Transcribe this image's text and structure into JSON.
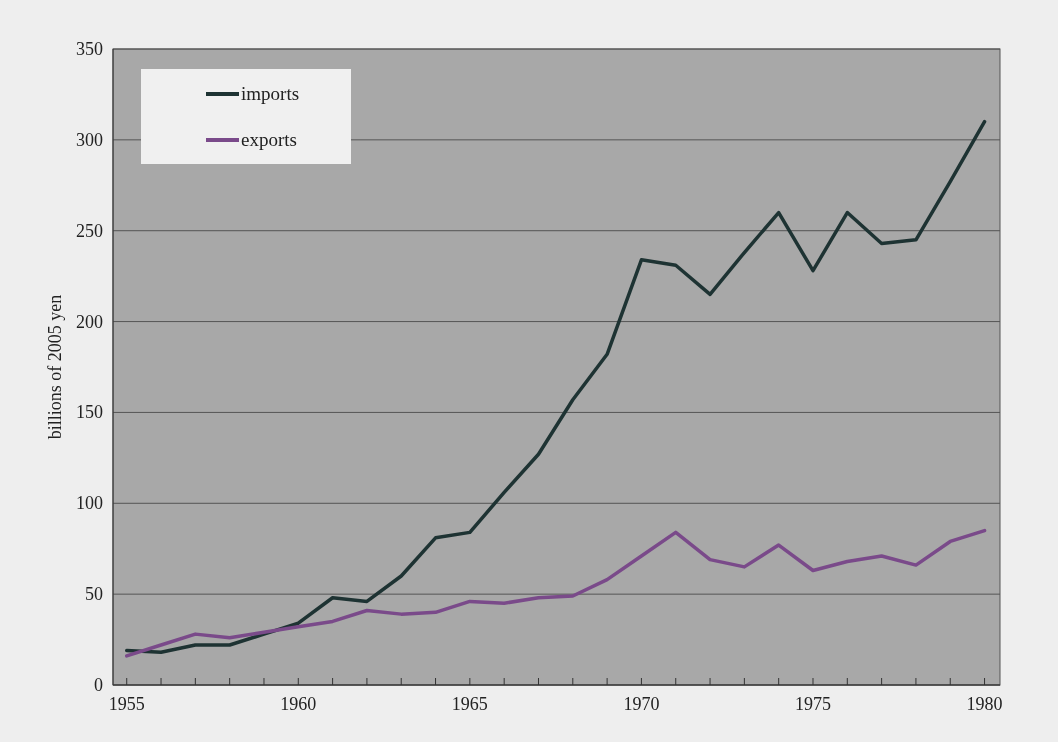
{
  "chart_data": {
    "type": "line",
    "ylabel": "billions of 2005 yen",
    "x": [
      1955,
      1956,
      1957,
      1958,
      1959,
      1960,
      1961,
      1962,
      1963,
      1964,
      1965,
      1966,
      1967,
      1968,
      1969,
      1970,
      1971,
      1972,
      1973,
      1974,
      1975,
      1976,
      1977,
      1978,
      1979,
      1980
    ],
    "series": [
      {
        "name": "imports",
        "color": "#1e3333",
        "values": [
          19,
          18,
          22,
          22,
          28,
          34,
          48,
          46,
          60,
          81,
          84,
          106,
          127,
          157,
          182,
          234,
          231,
          215,
          238,
          260,
          228,
          260,
          243,
          245,
          277,
          310
        ]
      },
      {
        "name": "exports",
        "color": "#7a4a8a",
        "values": [
          16,
          22,
          28,
          26,
          29,
          32,
          35,
          41,
          39,
          40,
          46,
          45,
          48,
          49,
          58,
          71,
          84,
          69,
          65,
          77,
          63,
          68,
          71,
          66,
          79,
          85
        ]
      }
    ],
    "xlim": [
      1954.6,
      1980.45
    ],
    "xticks": [
      1955,
      {
        "value": 1956,
        "label": null
      },
      {
        "value": 1957,
        "label": null
      },
      {
        "value": 1958,
        "label": null
      },
      {
        "value": 1959,
        "label": null
      },
      1960,
      {
        "value": 1961,
        "label": null
      },
      {
        "value": 1962,
        "label": null
      },
      {
        "value": 1963,
        "label": null
      },
      {
        "value": 1964,
        "label": null
      },
      1965,
      {
        "value": 1966,
        "label": null
      },
      {
        "value": 1967,
        "label": null
      },
      {
        "value": 1968,
        "label": null
      },
      {
        "value": 1969,
        "label": null
      },
      1970,
      {
        "value": 1971,
        "label": null
      },
      {
        "value": 1972,
        "label": null
      },
      {
        "value": 1973,
        "label": null
      },
      {
        "value": 1974,
        "label": null
      },
      1975,
      {
        "value": 1976,
        "label": null
      },
      {
        "value": 1977,
        "label": null
      },
      {
        "value": 1978,
        "label": null
      },
      {
        "value": 1979,
        "label": null
      },
      1980
    ],
    "ylim": [
      0,
      350
    ],
    "yticks": [
      0,
      50,
      100,
      150,
      200,
      250,
      300,
      350
    ],
    "grid": "y",
    "legend": "top left",
    "marker": "none",
    "line_style": "solid"
  }
}
